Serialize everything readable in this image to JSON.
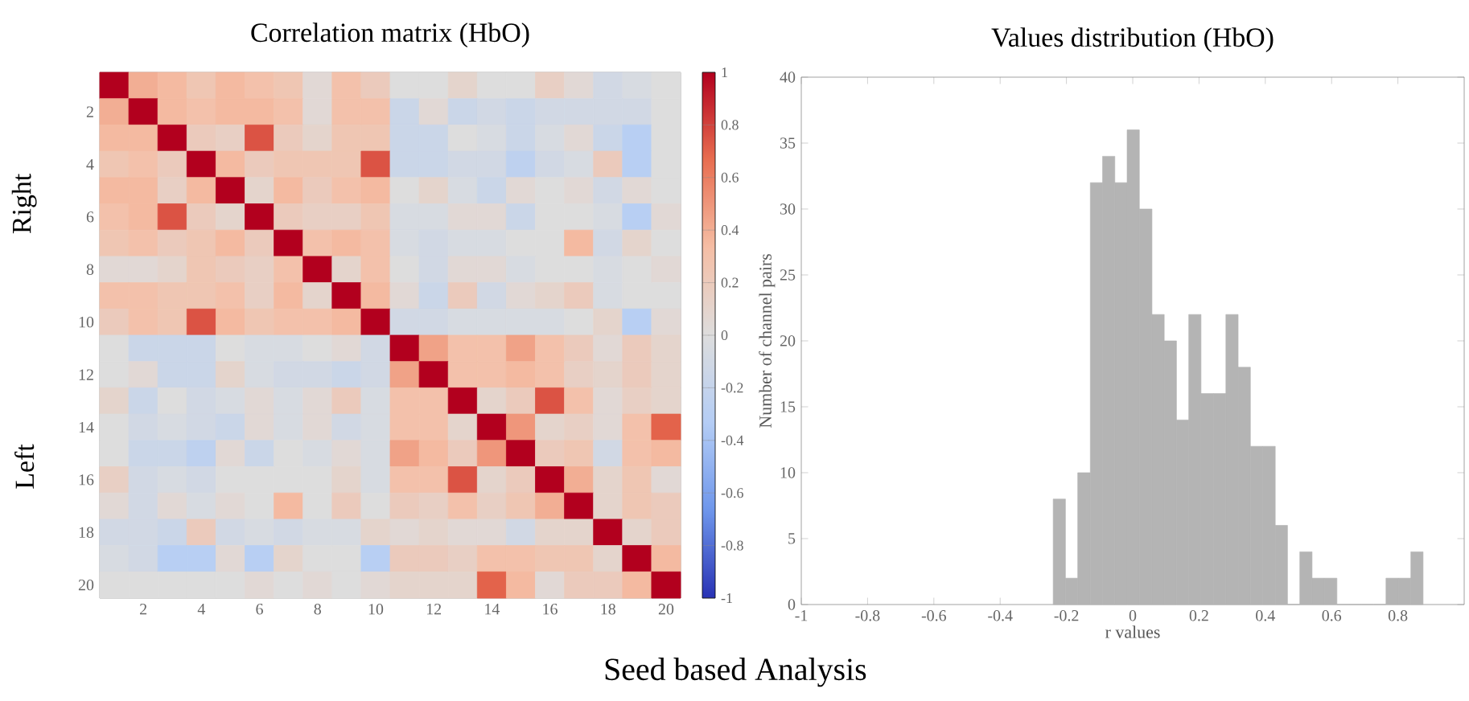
{
  "chart_data": [
    {
      "type": "heatmap",
      "title": "Correlation matrix (HbO)",
      "categories": [
        null,
        "2",
        null,
        "4",
        null,
        "6",
        null,
        "8",
        null,
        "10",
        null,
        "12",
        null,
        "14",
        null,
        "16",
        null,
        "18",
        null,
        "20"
      ],
      "y_categories": [
        null,
        "2",
        null,
        "4",
        null,
        "6",
        null,
        "8",
        null,
        "10",
        null,
        "12",
        null,
        "14",
        null,
        "16",
        null,
        "18",
        null,
        "20"
      ],
      "cells": [
        [
          1,
          0.4,
          0.35,
          0.25,
          0.35,
          0.3,
          0.25,
          0.05,
          0.3,
          0.2,
          0,
          0,
          0.1,
          0,
          0,
          0.15,
          0.05,
          -0.1,
          -0.05,
          0
        ],
        [
          0.4,
          1,
          0.35,
          0.3,
          0.35,
          0.35,
          0.3,
          0.05,
          0.3,
          0.3,
          -0.15,
          0.05,
          -0.15,
          -0.1,
          -0.15,
          -0.1,
          -0.1,
          -0.1,
          -0.1,
          0
        ],
        [
          0.35,
          0.35,
          1,
          0.2,
          0.15,
          0.75,
          0.2,
          0.1,
          0.25,
          0.25,
          -0.15,
          -0.15,
          0,
          -0.05,
          -0.15,
          -0.05,
          0.05,
          -0.15,
          -0.3,
          0
        ],
        [
          0.25,
          0.3,
          0.2,
          1,
          0.35,
          0.2,
          0.25,
          0.25,
          0.25,
          0.75,
          -0.15,
          -0.15,
          -0.1,
          -0.1,
          -0.25,
          -0.1,
          -0.05,
          0.2,
          -0.3,
          0
        ],
        [
          0.35,
          0.35,
          0.15,
          0.35,
          1,
          0.1,
          0.35,
          0.2,
          0.3,
          0.35,
          0,
          0.1,
          -0.05,
          -0.15,
          0.05,
          0,
          0.05,
          -0.1,
          0.05,
          0
        ],
        [
          0.3,
          0.35,
          0.75,
          0.2,
          0.1,
          1,
          0.2,
          0.15,
          0.15,
          0.25,
          -0.05,
          -0.05,
          0.05,
          0.05,
          -0.15,
          0,
          0,
          -0.05,
          -0.3,
          0.05
        ],
        [
          0.25,
          0.3,
          0.2,
          0.25,
          0.35,
          0.2,
          1,
          0.3,
          0.35,
          0.3,
          -0.05,
          -0.1,
          -0.05,
          -0.05,
          0,
          0,
          0.35,
          -0.1,
          0.1,
          0
        ],
        [
          0.05,
          0.05,
          0.1,
          0.25,
          0.2,
          0.15,
          0.3,
          1,
          0.1,
          0.3,
          0,
          -0.1,
          0.05,
          0.05,
          -0.05,
          0,
          0,
          -0.05,
          0,
          0.05
        ],
        [
          0.3,
          0.3,
          0.25,
          0.25,
          0.3,
          0.15,
          0.35,
          0.1,
          1,
          0.35,
          0.05,
          -0.15,
          0.2,
          -0.1,
          0.05,
          0.1,
          0.2,
          -0.05,
          0,
          0
        ],
        [
          0.2,
          0.3,
          0.25,
          0.75,
          0.35,
          0.25,
          0.3,
          0.3,
          0.35,
          1,
          -0.1,
          -0.1,
          -0.05,
          -0.05,
          -0.05,
          -0.05,
          0,
          0.1,
          -0.3,
          0.05
        ],
        [
          0,
          -0.15,
          -0.15,
          -0.15,
          0,
          -0.05,
          -0.05,
          0,
          0.05,
          -0.1,
          1,
          0.45,
          0.3,
          0.3,
          0.45,
          0.3,
          0.2,
          0.05,
          0.2,
          0.1
        ],
        [
          0,
          0.05,
          -0.15,
          -0.15,
          0.1,
          -0.05,
          -0.1,
          -0.1,
          -0.15,
          -0.1,
          0.45,
          1,
          0.3,
          0.3,
          0.35,
          0.3,
          0.15,
          0.1,
          0.2,
          0.1
        ],
        [
          0.1,
          -0.15,
          0,
          -0.1,
          -0.05,
          0.05,
          -0.05,
          0.05,
          0.2,
          -0.05,
          0.3,
          0.3,
          1,
          0.1,
          0.2,
          0.75,
          0.3,
          0.05,
          0.15,
          0.1
        ],
        [
          0,
          -0.1,
          -0.05,
          -0.1,
          -0.15,
          0.05,
          -0.05,
          0.05,
          -0.1,
          -0.05,
          0.3,
          0.3,
          0.1,
          1,
          0.5,
          0.1,
          0.15,
          0.05,
          0.3,
          0.7
        ],
        [
          0,
          -0.15,
          -0.15,
          -0.25,
          0.05,
          -0.15,
          0,
          -0.05,
          0.05,
          -0.05,
          0.45,
          0.35,
          0.2,
          0.5,
          1,
          0.2,
          0.25,
          -0.1,
          0.3,
          0.35
        ],
        [
          0.15,
          -0.1,
          -0.05,
          -0.1,
          0,
          0,
          0,
          0,
          0.1,
          -0.05,
          0.3,
          0.3,
          0.75,
          0.1,
          0.2,
          1,
          0.4,
          0.1,
          0.25,
          0.05
        ],
        [
          0.05,
          -0.1,
          0.05,
          -0.05,
          0.05,
          0,
          0.35,
          0,
          0.2,
          0,
          0.2,
          0.15,
          0.3,
          0.15,
          0.25,
          0.4,
          1,
          0.1,
          0.25,
          0.2
        ],
        [
          -0.1,
          -0.1,
          -0.15,
          0.2,
          -0.1,
          -0.05,
          -0.1,
          -0.05,
          -0.05,
          0.1,
          0.05,
          0.1,
          0.05,
          0.05,
          -0.1,
          0.1,
          0.1,
          1,
          0.1,
          0.2
        ],
        [
          -0.05,
          -0.1,
          -0.3,
          -0.3,
          0.05,
          -0.3,
          0.1,
          0,
          0,
          -0.3,
          0.2,
          0.2,
          0.15,
          0.3,
          0.3,
          0.25,
          0.25,
          0.1,
          1,
          0.35
        ],
        [
          0,
          0,
          0,
          0,
          0,
          0.05,
          0,
          0.05,
          0,
          0.05,
          0.1,
          0.1,
          0.1,
          0.7,
          0.35,
          0.05,
          0.2,
          0.2,
          0.35,
          1
        ]
      ],
      "clim": [
        -1,
        1
      ],
      "cticks": [
        -1,
        -0.8,
        -0.6,
        -0.4,
        -0.2,
        0,
        0.2,
        0.4,
        0.6,
        0.8,
        1
      ],
      "annotations": [
        "Right",
        "Left",
        "Seed based Analysis"
      ]
    },
    {
      "type": "histogram",
      "title": "Values distribution (HbO)",
      "xlabel": "r values",
      "ylabel": "Number of channel pairs",
      "color": "#b4b4b4",
      "bins": [
        -0.24,
        -0.203,
        -0.166,
        -0.128,
        -0.091,
        -0.054,
        -0.017,
        0.02,
        0.058,
        0.095,
        0.132,
        0.169,
        0.206,
        0.244,
        0.281,
        0.318,
        0.355,
        0.392,
        0.43,
        0.467,
        0.504,
        0.541,
        0.578,
        0.616,
        0.653,
        0.69,
        0.727,
        0.764,
        0.802,
        0.839,
        0.876
      ],
      "values": [
        8,
        2,
        10,
        32,
        34,
        32,
        36,
        30,
        22,
        20,
        14,
        22,
        16,
        16,
        22,
        18,
        12,
        12,
        6,
        0,
        4,
        2,
        2,
        0,
        0,
        0,
        0,
        2,
        2,
        4
      ],
      "xlim": [
        -1,
        1
      ],
      "xticks": [
        -1,
        -0.8,
        -0.6,
        -0.4,
        -0.2,
        0,
        0.2,
        0.4,
        0.6,
        0.8
      ],
      "ylim": [
        0,
        40
      ],
      "yticks": [
        0,
        5,
        10,
        15,
        20,
        25,
        30,
        35,
        40
      ]
    }
  ]
}
